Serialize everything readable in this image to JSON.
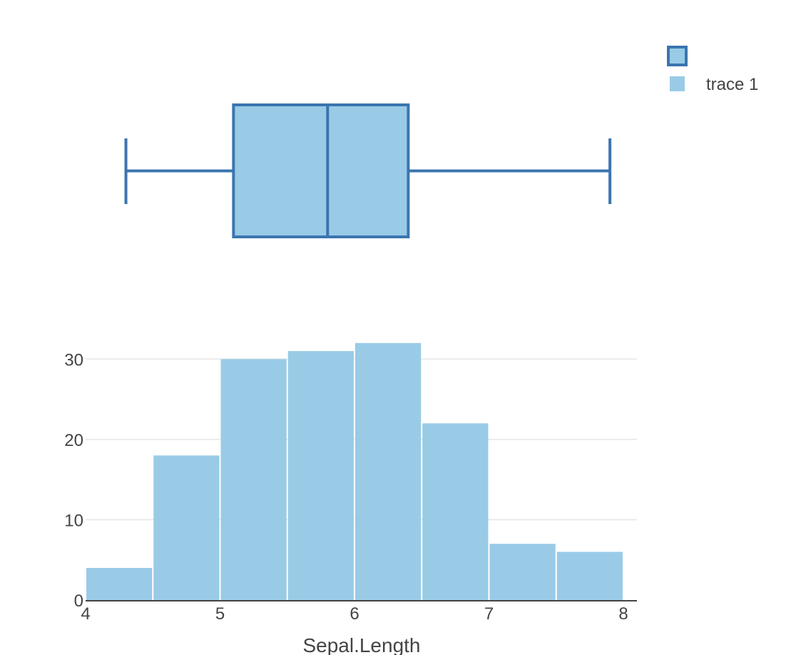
{
  "chart_data": [
    {
      "type": "box",
      "name": "",
      "stats": {
        "min": 4.3,
        "q1": 5.1,
        "median": 5.8,
        "q3": 6.4,
        "max": 7.9
      },
      "xlim": [
        4,
        8
      ],
      "fill_color": "#99cbe7",
      "line_color": "#3b75af"
    },
    {
      "type": "histogram",
      "name": "trace 1",
      "bins": [
        {
          "x0": 4.0,
          "x1": 4.5,
          "count": 4
        },
        {
          "x0": 4.5,
          "x1": 5.0,
          "count": 18
        },
        {
          "x0": 5.0,
          "x1": 5.5,
          "count": 30
        },
        {
          "x0": 5.5,
          "x1": 6.0,
          "count": 31
        },
        {
          "x0": 6.0,
          "x1": 6.5,
          "count": 32
        },
        {
          "x0": 6.5,
          "x1": 7.0,
          "count": 22
        },
        {
          "x0": 7.0,
          "x1": 7.5,
          "count": 7
        },
        {
          "x0": 7.5,
          "x1": 8.0,
          "count": 6
        }
      ],
      "xlabel": "Sepal.Length",
      "ylabel": "",
      "xlim": [
        4,
        8
      ],
      "ylim": [
        0,
        35
      ],
      "xticks": [
        4,
        5,
        6,
        7,
        8
      ],
      "yticks": [
        0,
        10,
        20,
        30
      ],
      "grid": true,
      "bar_color": "#99cbe7"
    }
  ],
  "legend": {
    "position": "top-right",
    "items": [
      {
        "label": "",
        "kind": "box"
      },
      {
        "label": "trace 1",
        "kind": "bar"
      }
    ]
  }
}
